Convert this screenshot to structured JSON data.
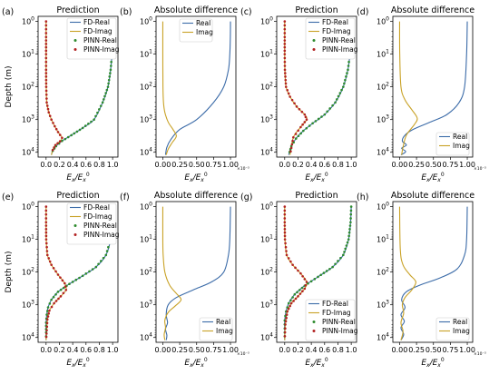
{
  "colors": {
    "fd_real": "#3b6ba8",
    "fd_imag": "#c9a227",
    "pinn_real": "#2e8b2e",
    "pinn_imag": "#b22222"
  },
  "chart_data": [
    {
      "type": "line",
      "panel": "(a)",
      "title": "Prediction",
      "ylabel": "Depth (m)",
      "xlabel": "E_x/E_x^0",
      "xticks": [
        "0.0",
        "0.2",
        "0.4",
        "0.6",
        "0.8",
        "1.0"
      ],
      "xlim": [
        -0.12,
        1.08
      ],
      "yscale": "log",
      "yticks": [
        "10^0",
        "10^1",
        "10^2",
        "10^3",
        "10^4"
      ],
      "ylim": [
        0.7,
        14000
      ],
      "y_inverted": true,
      "legend": "top-right",
      "series": [
        {
          "name": "FD-Real",
          "style": "line",
          "color": "fd_real",
          "x": [
            1.0,
            0.997,
            0.99,
            0.97,
            0.93,
            0.85,
            0.72,
            0.55,
            0.38,
            0.24,
            0.15,
            0.1,
            0.08
          ],
          "y": [
            1,
            3,
            10,
            30,
            100,
            300,
            1000,
            1800,
            3000,
            4500,
            6500,
            9000,
            12000
          ]
        },
        {
          "name": "FD-Imag",
          "style": "line",
          "color": "fd_imag",
          "x": [
            0.0,
            0.0,
            0.0,
            0.0,
            0.002,
            0.01,
            0.04,
            0.08,
            0.13,
            0.18,
            0.24,
            0.21,
            0.14,
            0.1,
            0.08
          ],
          "y": [
            1,
            3,
            10,
            30,
            100,
            300,
            600,
            1000,
            1600,
            2400,
            3600,
            4600,
            6000,
            8500,
            12000
          ]
        },
        {
          "name": "PINN-Real",
          "style": "marker",
          "color": "pinn_real",
          "x": [
            1.0,
            0.997,
            0.99,
            0.97,
            0.93,
            0.85,
            0.72,
            0.55,
            0.38,
            0.24,
            0.15,
            0.1,
            0.08
          ],
          "y": [
            1,
            3,
            10,
            30,
            100,
            300,
            1000,
            1800,
            3000,
            4500,
            6500,
            9000,
            12000
          ]
        },
        {
          "name": "PINN-Imag",
          "style": "marker",
          "color": "pinn_imag",
          "x": [
            0.0,
            0.0,
            0.0,
            0.0,
            0.002,
            0.01,
            0.04,
            0.08,
            0.13,
            0.18,
            0.24,
            0.21,
            0.14,
            0.1,
            0.08
          ],
          "y": [
            1,
            3,
            10,
            30,
            100,
            300,
            600,
            1000,
            1600,
            2400,
            3600,
            4600,
            6000,
            8500,
            12000
          ]
        }
      ]
    },
    {
      "type": "line",
      "panel": "(b)",
      "title": "Absolute difference",
      "xlabel": "E_x/E_x^0",
      "xticks": [
        "0.00",
        "0.25",
        "0.50",
        "0.75",
        "1.00"
      ],
      "xlim": [
        -0.1,
        1.08
      ],
      "x_multiplier": "×10⁻³",
      "yscale": "log",
      "yticks": [
        "10^0",
        "10^1",
        "10^2",
        "10^3",
        "10^4"
      ],
      "ylim": [
        0.7,
        14000
      ],
      "y_inverted": true,
      "legend": "top-center",
      "series": [
        {
          "name": "Real",
          "color": "fd_real",
          "x": [
            1.0,
            0.998,
            0.99,
            0.97,
            0.9,
            0.75,
            0.5,
            0.25,
            0.12,
            0.06,
            0.04
          ],
          "y": [
            1,
            3,
            10,
            30,
            100,
            300,
            1000,
            2000,
            4000,
            7000,
            12000
          ]
        },
        {
          "name": "Imag",
          "color": "fd_imag",
          "x": [
            0.0,
            0.0,
            0.002,
            0.01,
            0.03,
            0.08,
            0.15,
            0.2,
            0.14,
            0.08,
            0.05
          ],
          "y": [
            1,
            10,
            100,
            300,
            600,
            1200,
            2000,
            3200,
            5000,
            8000,
            12000
          ]
        }
      ]
    },
    {
      "type": "line",
      "panel": "(c)",
      "title": "Prediction",
      "xlabel": "E_x/E_x^0",
      "xticks": [
        "0.0",
        "0.2",
        "0.4",
        "0.6",
        "0.8",
        "1.0"
      ],
      "xlim": [
        -0.12,
        1.08
      ],
      "yscale": "log",
      "yticks": [
        "10^0",
        "10^1",
        "10^2",
        "10^3",
        "10^4"
      ],
      "ylim": [
        0.7,
        14000
      ],
      "y_inverted": true,
      "legend": "top-right",
      "series": [
        {
          "name": "FD-Real",
          "style": "line",
          "color": "fd_real",
          "x": [
            1.0,
            0.995,
            0.98,
            0.95,
            0.88,
            0.76,
            0.6,
            0.42,
            0.28,
            0.17,
            0.1,
            0.06
          ],
          "y": [
            1,
            3,
            10,
            30,
            100,
            300,
            700,
            1300,
            2200,
            3800,
            6500,
            12000
          ]
        },
        {
          "name": "FD-Imag",
          "style": "line",
          "color": "fd_imag",
          "x": [
            0.0,
            0.0,
            0.0,
            0.003,
            0.02,
            0.08,
            0.18,
            0.3,
            0.33,
            0.24,
            0.13,
            0.08
          ],
          "y": [
            1,
            3,
            10,
            30,
            100,
            200,
            400,
            700,
            1000,
            1700,
            3500,
            12000
          ]
        },
        {
          "name": "PINN-Real",
          "style": "marker",
          "color": "pinn_real",
          "x": [
            1.0,
            0.995,
            0.98,
            0.95,
            0.88,
            0.76,
            0.6,
            0.42,
            0.28,
            0.17,
            0.1,
            0.06
          ],
          "y": [
            1,
            3,
            10,
            30,
            100,
            300,
            700,
            1300,
            2200,
            3800,
            6500,
            12000
          ]
        },
        {
          "name": "PINN-Imag",
          "style": "marker",
          "color": "pinn_imag",
          "x": [
            0.0,
            0.0,
            0.0,
            0.003,
            0.02,
            0.08,
            0.18,
            0.3,
            0.33,
            0.24,
            0.13,
            0.08
          ],
          "y": [
            1,
            3,
            10,
            30,
            100,
            200,
            400,
            700,
            1000,
            1700,
            3500,
            12000
          ]
        }
      ]
    },
    {
      "type": "line",
      "panel": "(d)",
      "title": "Absolute difference",
      "xlabel": "E_x/E_x^0",
      "xticks": [
        "0.00",
        "0.25",
        "0.50",
        "0.75",
        "1.00"
      ],
      "xlim": [
        -0.1,
        1.08
      ],
      "x_multiplier": "×10⁻³",
      "yscale": "log",
      "yticks": [
        "10^0",
        "10^1",
        "10^2",
        "10^3",
        "10^4"
      ],
      "ylim": [
        0.7,
        14000
      ],
      "y_inverted": true,
      "legend": "bottom-right",
      "series": [
        {
          "name": "Real",
          "color": "fd_real",
          "x": [
            1.0,
            0.99,
            0.96,
            0.88,
            0.7,
            0.45,
            0.2,
            0.08,
            0.04,
            0.1,
            0.03,
            0.09,
            0.02
          ],
          "y": [
            1,
            10,
            100,
            300,
            700,
            1200,
            2000,
            3000,
            4500,
            6000,
            7500,
            9500,
            12000
          ]
        },
        {
          "name": "Imag",
          "color": "fd_imag",
          "x": [
            0.0,
            0.002,
            0.02,
            0.08,
            0.18,
            0.26,
            0.22,
            0.1,
            0.05,
            0.03
          ],
          "y": [
            1,
            10,
            100,
            250,
            500,
            900,
            1400,
            3000,
            7000,
            12000
          ]
        }
      ]
    },
    {
      "type": "line",
      "panel": "(e)",
      "title": "Prediction",
      "ylabel": "Depth (m)",
      "xlabel": "E_x/E_x^0",
      "xticks": [
        "0.0",
        "0.2",
        "0.4",
        "0.6",
        "0.8",
        "1.0"
      ],
      "xlim": [
        -0.12,
        1.08
      ],
      "yscale": "log",
      "yticks": [
        "10^0",
        "10^1",
        "10^2",
        "10^3",
        "10^4"
      ],
      "ylim": [
        0.7,
        14000
      ],
      "y_inverted": true,
      "legend": "top-right",
      "series": [
        {
          "name": "FD-Real",
          "style": "line",
          "color": "fd_real",
          "x": [
            1.0,
            0.99,
            0.97,
            0.9,
            0.75,
            0.55,
            0.35,
            0.18,
            0.08,
            0.03,
            0.01,
            0.0,
            0.0,
            0.0
          ],
          "y": [
            1,
            3,
            10,
            30,
            70,
            130,
            230,
            400,
            700,
            1200,
            2000,
            3500,
            7000,
            12000
          ]
        },
        {
          "name": "FD-Imag",
          "style": "line",
          "color": "fd_imag",
          "x": [
            0.0,
            0.0,
            0.002,
            0.02,
            0.08,
            0.18,
            0.28,
            0.3,
            0.22,
            0.12,
            0.05,
            0.02,
            0.01,
            0.0
          ],
          "y": [
            1,
            3,
            10,
            30,
            60,
            120,
            220,
            350,
            550,
            900,
            1500,
            2800,
            6000,
            12000
          ]
        },
        {
          "name": "PINN-Real",
          "style": "marker",
          "color": "pinn_real",
          "x": [
            1.0,
            0.99,
            0.97,
            0.9,
            0.75,
            0.55,
            0.35,
            0.18,
            0.08,
            0.03,
            0.01,
            0.0,
            0.0,
            0.0
          ],
          "y": [
            1,
            3,
            10,
            30,
            70,
            130,
            230,
            400,
            700,
            1200,
            2000,
            3500,
            7000,
            12000
          ]
        },
        {
          "name": "PINN-Imag",
          "style": "marker",
          "color": "pinn_imag",
          "x": [
            0.0,
            0.0,
            0.002,
            0.02,
            0.08,
            0.18,
            0.28,
            0.3,
            0.22,
            0.12,
            0.05,
            0.02,
            0.01,
            0.0
          ],
          "y": [
            1,
            3,
            10,
            30,
            60,
            120,
            220,
            350,
            550,
            900,
            1500,
            2800,
            6000,
            12000
          ]
        }
      ]
    },
    {
      "type": "line",
      "panel": "(f)",
      "title": "Absolute difference",
      "xlabel": "E_x/E_x^0",
      "xticks": [
        "0.00",
        "0.25",
        "0.50",
        "0.75",
        "1.00"
      ],
      "xlim": [
        -0.1,
        1.08
      ],
      "x_multiplier": "×10⁻³",
      "yscale": "log",
      "yticks": [
        "10^0",
        "10^1",
        "10^2",
        "10^3",
        "10^4"
      ],
      "ylim": [
        0.7,
        14000
      ],
      "y_inverted": true,
      "legend": "bottom-right",
      "series": [
        {
          "name": "Real",
          "color": "fd_real",
          "x": [
            1.0,
            0.99,
            0.97,
            0.9,
            0.72,
            0.45,
            0.2,
            0.08,
            0.05,
            0.07,
            0.04,
            0.06,
            0.05
          ],
          "y": [
            1,
            10,
            30,
            100,
            200,
            350,
            600,
            1000,
            2000,
            3500,
            5500,
            8500,
            12000
          ]
        },
        {
          "name": "Imag",
          "color": "fd_imag",
          "x": [
            0.0,
            0.0,
            0.005,
            0.03,
            0.1,
            0.2,
            0.27,
            0.18,
            0.08,
            0.03,
            0.04,
            0.02,
            0.03
          ],
          "y": [
            1,
            10,
            30,
            100,
            250,
            450,
            700,
            1100,
            1700,
            3000,
            5000,
            8000,
            12000
          ]
        }
      ]
    },
    {
      "type": "line",
      "panel": "(g)",
      "title": "Prediction",
      "xlabel": "E_x/E_x^0",
      "xticks": [
        "0.0",
        "0.2",
        "0.4",
        "0.6",
        "0.8",
        "1.0"
      ],
      "xlim": [
        -0.12,
        1.08
      ],
      "yscale": "log",
      "yticks": [
        "10^0",
        "10^1",
        "10^2",
        "10^3",
        "10^4"
      ],
      "ylim": [
        0.7,
        14000
      ],
      "y_inverted": true,
      "legend": "bottom-right",
      "series": [
        {
          "name": "FD-Real",
          "style": "line",
          "color": "fd_real",
          "x": [
            1.0,
            0.99,
            0.96,
            0.88,
            0.72,
            0.5,
            0.3,
            0.15,
            0.06,
            0.02,
            0.0,
            0.0,
            0.0
          ],
          "y": [
            1,
            3,
            10,
            30,
            70,
            140,
            260,
            480,
            900,
            1600,
            3000,
            7000,
            12000
          ]
        },
        {
          "name": "FD-Imag",
          "style": "line",
          "color": "fd_imag",
          "x": [
            0.0,
            0.0,
            0.004,
            0.03,
            0.12,
            0.24,
            0.33,
            0.3,
            0.2,
            0.1,
            0.04,
            0.01,
            0.0
          ],
          "y": [
            1,
            3,
            10,
            30,
            60,
            110,
            200,
            320,
            550,
            900,
            1600,
            4000,
            12000
          ]
        },
        {
          "name": "PINN-Real",
          "style": "marker",
          "color": "pinn_real",
          "x": [
            1.0,
            0.99,
            0.96,
            0.88,
            0.72,
            0.5,
            0.3,
            0.15,
            0.06,
            0.02,
            0.0,
            0.0,
            0.0
          ],
          "y": [
            1,
            3,
            10,
            30,
            70,
            140,
            260,
            480,
            900,
            1600,
            3000,
            7000,
            12000
          ]
        },
        {
          "name": "PINN-Imag",
          "style": "marker",
          "color": "pinn_imag",
          "x": [
            0.0,
            0.0,
            0.004,
            0.03,
            0.12,
            0.24,
            0.33,
            0.3,
            0.2,
            0.1,
            0.04,
            0.01,
            0.0
          ],
          "y": [
            1,
            3,
            10,
            30,
            60,
            110,
            200,
            320,
            550,
            900,
            1600,
            4000,
            12000
          ]
        }
      ]
    },
    {
      "type": "line",
      "panel": "(h)",
      "title": "Absolute difference",
      "xlabel": "E_x/E_x^0",
      "xticks": [
        "0.00",
        "0.25",
        "0.50",
        "0.75",
        "1.00"
      ],
      "xlim": [
        -0.1,
        1.08
      ],
      "x_multiplier": "×10⁻³",
      "yscale": "log",
      "yticks": [
        "10^0",
        "10^1",
        "10^2",
        "10^3",
        "10^4"
      ],
      "ylim": [
        0.7,
        14000
      ],
      "y_inverted": true,
      "legend": "bottom-right",
      "series": [
        {
          "name": "Real",
          "color": "fd_real",
          "x": [
            1.0,
            0.99,
            0.96,
            0.85,
            0.6,
            0.3,
            0.1,
            0.03,
            0.08,
            0.02,
            0.07,
            0.02,
            0.06,
            0.02
          ],
          "y": [
            1,
            10,
            30,
            80,
            150,
            250,
            400,
            700,
            1200,
            2000,
            3200,
            5000,
            8000,
            12000
          ]
        },
        {
          "name": "Imag",
          "color": "fd_imag",
          "x": [
            0.0,
            0.01,
            0.05,
            0.15,
            0.24,
            0.18,
            0.08,
            0.04,
            0.06,
            0.02,
            0.05,
            0.02
          ],
          "y": [
            1,
            20,
            60,
            120,
            200,
            350,
            600,
            1000,
            1800,
            3500,
            6500,
            12000
          ]
        }
      ]
    }
  ]
}
